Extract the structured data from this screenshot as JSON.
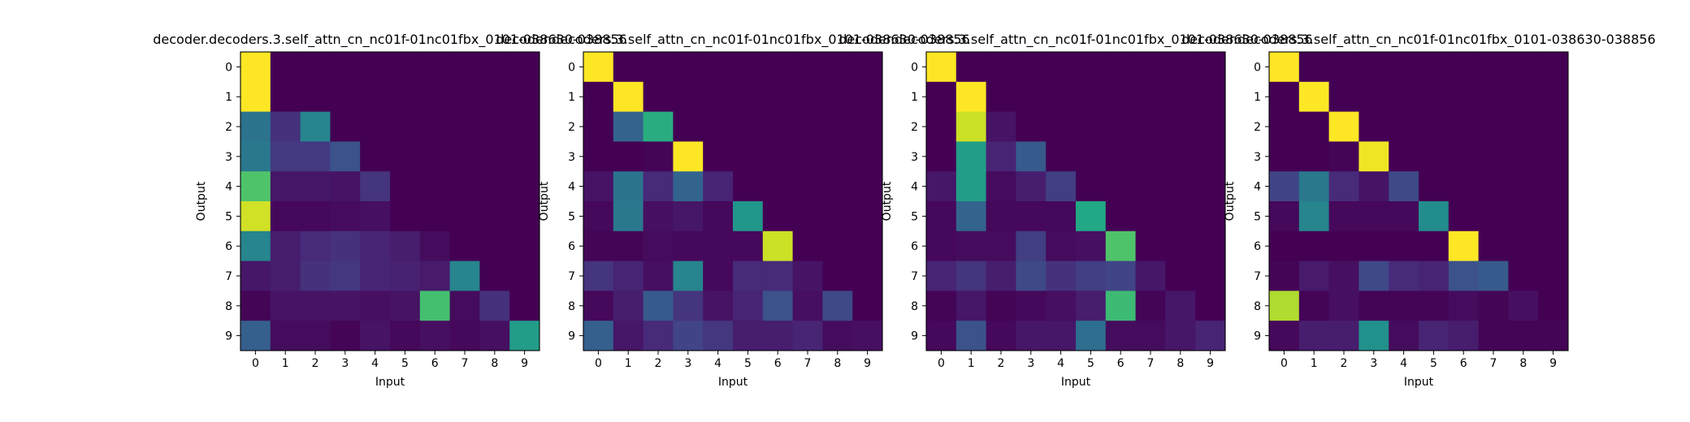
{
  "chart_data": [
    {
      "type": "heatmap",
      "title": "decoder.decoders.3.self_attn_cn_nc01f-01nc01fbx_0101-038630-038856",
      "xlabel": "Input",
      "ylabel": "Output",
      "x_ticks": [
        "0",
        "1",
        "2",
        "3",
        "4",
        "5",
        "6",
        "7",
        "8",
        "9"
      ],
      "y_ticks": [
        "0",
        "1",
        "2",
        "3",
        "4",
        "5",
        "6",
        "7",
        "8",
        "9"
      ],
      "colormap": "viridis",
      "zlim": [
        0,
        1
      ],
      "values": [
        [
          1.0,
          0,
          0,
          0,
          0,
          0,
          0,
          0,
          0,
          0
        ],
        [
          1.0,
          0,
          0,
          0,
          0,
          0,
          0,
          0,
          0,
          0
        ],
        [
          0.38,
          0.14,
          0.45,
          0,
          0,
          0,
          0,
          0,
          0,
          0
        ],
        [
          0.4,
          0.17,
          0.17,
          0.25,
          0,
          0,
          0,
          0,
          0,
          0
        ],
        [
          0.72,
          0.06,
          0.06,
          0.05,
          0.15,
          0,
          0,
          0,
          0,
          0
        ],
        [
          0.93,
          0.02,
          0.02,
          0.03,
          0.04,
          0,
          0,
          0,
          0,
          0
        ],
        [
          0.45,
          0.08,
          0.12,
          0.14,
          0.1,
          0.08,
          0.03,
          0,
          0,
          0
        ],
        [
          0.06,
          0.08,
          0.14,
          0.16,
          0.1,
          0.09,
          0.07,
          0.45,
          0,
          0
        ],
        [
          0.01,
          0.05,
          0.05,
          0.05,
          0.04,
          0.05,
          0.7,
          0.03,
          0.14,
          0
        ],
        [
          0.3,
          0.03,
          0.03,
          0.01,
          0.05,
          0.02,
          0.04,
          0.02,
          0.04,
          0.55
        ]
      ]
    },
    {
      "type": "heatmap",
      "title": "decoder.decoders.3.self_attn_cn_nc01f-01nc01fbx_0101-038630-038856",
      "xlabel": "Input",
      "ylabel": "Output",
      "x_ticks": [
        "0",
        "1",
        "2",
        "3",
        "4",
        "5",
        "6",
        "7",
        "8",
        "9"
      ],
      "y_ticks": [
        "0",
        "1",
        "2",
        "3",
        "4",
        "5",
        "6",
        "7",
        "8",
        "9"
      ],
      "colormap": "viridis",
      "zlim": [
        0,
        1
      ],
      "values": [
        [
          1.0,
          0,
          0,
          0,
          0,
          0,
          0,
          0,
          0,
          0
        ],
        [
          0,
          1.0,
          0,
          0,
          0,
          0,
          0,
          0,
          0,
          0
        ],
        [
          0,
          0.32,
          0.62,
          0,
          0,
          0,
          0,
          0,
          0,
          0
        ],
        [
          0,
          0,
          0.01,
          1.0,
          0,
          0,
          0,
          0,
          0,
          0
        ],
        [
          0.05,
          0.38,
          0.12,
          0.32,
          0.1,
          0,
          0,
          0,
          0,
          0
        ],
        [
          0.02,
          0.4,
          0.04,
          0.06,
          0.02,
          0.52,
          0,
          0,
          0,
          0
        ],
        [
          0.01,
          0.01,
          0.03,
          0.02,
          0.02,
          0.02,
          0.92,
          0,
          0,
          0
        ],
        [
          0.15,
          0.1,
          0.04,
          0.45,
          0.02,
          0.12,
          0.12,
          0.05,
          0,
          0
        ],
        [
          0.02,
          0.08,
          0.28,
          0.15,
          0.05,
          0.1,
          0.25,
          0.04,
          0.22,
          0
        ],
        [
          0.3,
          0.06,
          0.12,
          0.2,
          0.16,
          0.08,
          0.08,
          0.1,
          0.03,
          0.04
        ]
      ]
    },
    {
      "type": "heatmap",
      "title": "decoder.decoders.3.self_attn_cn_nc01f-01nc01fbx_0101-038630-038856",
      "xlabel": "Input",
      "ylabel": "Output",
      "x_ticks": [
        "0",
        "1",
        "2",
        "3",
        "4",
        "5",
        "6",
        "7",
        "8",
        "9"
      ],
      "y_ticks": [
        "0",
        "1",
        "2",
        "3",
        "4",
        "5",
        "6",
        "7",
        "8",
        "9"
      ],
      "colormap": "viridis",
      "zlim": [
        0,
        1
      ],
      "values": [
        [
          1.0,
          0,
          0,
          0,
          0,
          0,
          0,
          0,
          0,
          0
        ],
        [
          0,
          1.0,
          0,
          0,
          0,
          0,
          0,
          0,
          0,
          0
        ],
        [
          0,
          0.92,
          0.05,
          0,
          0,
          0,
          0,
          0,
          0,
          0
        ],
        [
          0,
          0.55,
          0.1,
          0.28,
          0,
          0,
          0,
          0,
          0,
          0
        ],
        [
          0.06,
          0.55,
          0.03,
          0.08,
          0.18,
          0,
          0,
          0,
          0,
          0
        ],
        [
          0.02,
          0.32,
          0.02,
          0.02,
          0.02,
          0.6,
          0,
          0,
          0,
          0
        ],
        [
          0.02,
          0.03,
          0.03,
          0.18,
          0.03,
          0.04,
          0.72,
          0,
          0,
          0
        ],
        [
          0.1,
          0.15,
          0.08,
          0.22,
          0.14,
          0.18,
          0.2,
          0.06,
          0,
          0
        ],
        [
          0.01,
          0.06,
          0.01,
          0.02,
          0.04,
          0.08,
          0.68,
          0.01,
          0.06,
          0
        ],
        [
          0.02,
          0.25,
          0.02,
          0.06,
          0.06,
          0.36,
          0.03,
          0.03,
          0.06,
          0.1
        ]
      ]
    },
    {
      "type": "heatmap",
      "title": "decoder.decoders.3.self_attn_cn_nc01f-01nc01fbx_0101-038630-038856",
      "xlabel": "Input",
      "ylabel": "Output",
      "x_ticks": [
        "0",
        "1",
        "2",
        "3",
        "4",
        "5",
        "6",
        "7",
        "8",
        "9"
      ],
      "y_ticks": [
        "0",
        "1",
        "2",
        "3",
        "4",
        "5",
        "6",
        "7",
        "8",
        "9"
      ],
      "colormap": "viridis",
      "zlim": [
        0,
        1
      ],
      "values": [
        [
          1.0,
          0,
          0,
          0,
          0,
          0,
          0,
          0,
          0,
          0
        ],
        [
          0,
          1.0,
          0,
          0,
          0,
          0,
          0,
          0,
          0,
          0
        ],
        [
          0,
          0,
          1.0,
          0,
          0,
          0,
          0,
          0,
          0,
          0
        ],
        [
          0,
          0,
          0.01,
          0.98,
          0,
          0,
          0,
          0,
          0,
          0
        ],
        [
          0.2,
          0.4,
          0.12,
          0.05,
          0.22,
          0,
          0,
          0,
          0,
          0
        ],
        [
          0.02,
          0.45,
          0.02,
          0.02,
          0.02,
          0.48,
          0,
          0,
          0,
          0
        ],
        [
          0,
          0,
          0,
          0,
          0,
          0,
          1.0,
          0,
          0,
          0
        ],
        [
          0.01,
          0.07,
          0.04,
          0.22,
          0.12,
          0.1,
          0.25,
          0.28,
          0,
          0
        ],
        [
          0.88,
          0.01,
          0.04,
          0.01,
          0.01,
          0.01,
          0.03,
          0.01,
          0.04,
          0
        ],
        [
          0.02,
          0.08,
          0.08,
          0.5,
          0.03,
          0.1,
          0.08,
          0.01,
          0.01,
          0.01
        ]
      ]
    }
  ]
}
